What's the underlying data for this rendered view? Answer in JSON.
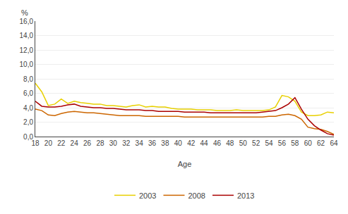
{
  "chart_data": {
    "type": "line",
    "x_label": "Age",
    "y_label": "%",
    "x": [
      18,
      19,
      20,
      21,
      22,
      23,
      24,
      25,
      26,
      27,
      28,
      29,
      30,
      31,
      32,
      33,
      34,
      35,
      36,
      37,
      38,
      39,
      40,
      41,
      42,
      43,
      44,
      45,
      46,
      47,
      48,
      49,
      50,
      51,
      52,
      53,
      54,
      55,
      56,
      57,
      58,
      59,
      60,
      61,
      62,
      63,
      64
    ],
    "series": [
      {
        "name": "2003",
        "color": "#E8D000",
        "values": [
          7.4,
          6.2,
          4.3,
          4.5,
          5.2,
          4.6,
          4.9,
          4.7,
          4.6,
          4.5,
          4.5,
          4.3,
          4.3,
          4.2,
          4.1,
          4.3,
          4.4,
          4.1,
          4.2,
          4.1,
          4.1,
          3.9,
          3.8,
          3.8,
          3.8,
          3.7,
          3.7,
          3.7,
          3.6,
          3.6,
          3.6,
          3.7,
          3.6,
          3.6,
          3.6,
          3.6,
          3.7,
          4.1,
          5.7,
          5.5,
          4.9,
          3.4,
          2.9,
          2.9,
          3.0,
          3.4,
          3.3
        ]
      },
      {
        "name": "2008",
        "color": "#CC6600",
        "values": [
          3.8,
          3.6,
          3.0,
          2.9,
          3.2,
          3.4,
          3.5,
          3.4,
          3.3,
          3.3,
          3.2,
          3.1,
          3.0,
          2.9,
          2.9,
          2.9,
          2.9,
          2.8,
          2.8,
          2.8,
          2.8,
          2.8,
          2.8,
          2.7,
          2.7,
          2.7,
          2.7,
          2.7,
          2.7,
          2.7,
          2.7,
          2.7,
          2.7,
          2.7,
          2.7,
          2.7,
          2.8,
          2.8,
          3.0,
          3.1,
          2.9,
          2.4,
          1.3,
          1.1,
          1.0,
          0.7,
          0.3
        ]
      },
      {
        "name": "2013",
        "color": "#AA0000",
        "values": [
          4.9,
          4.2,
          4.1,
          4.1,
          4.2,
          4.4,
          4.5,
          4.2,
          4.1,
          4.0,
          4.0,
          3.9,
          3.9,
          3.8,
          3.7,
          3.7,
          3.7,
          3.6,
          3.6,
          3.5,
          3.5,
          3.5,
          3.5,
          3.4,
          3.4,
          3.4,
          3.4,
          3.3,
          3.3,
          3.3,
          3.3,
          3.3,
          3.3,
          3.3,
          3.3,
          3.4,
          3.5,
          3.6,
          4.0,
          4.5,
          5.4,
          3.8,
          2.4,
          1.5,
          0.9,
          0.4,
          0.2
        ]
      }
    ],
    "xlim": [
      18,
      64
    ],
    "xticks": [
      18,
      20,
      22,
      24,
      26,
      28,
      30,
      32,
      34,
      36,
      38,
      40,
      42,
      44,
      46,
      48,
      50,
      52,
      54,
      56,
      58,
      60,
      62,
      64
    ],
    "ylim": [
      0,
      16
    ],
    "yticks": [
      {
        "value": 0.0,
        "label": "0,0"
      },
      {
        "value": 2.0,
        "label": "2,0"
      },
      {
        "value": 4.0,
        "label": "4,0"
      },
      {
        "value": 6.0,
        "label": "6,0"
      },
      {
        "value": 8.0,
        "label": "8,0"
      },
      {
        "value": 10.0,
        "label": "10,0"
      },
      {
        "value": 12.0,
        "label": "12,0"
      },
      {
        "value": 14.0,
        "label": "14,0"
      },
      {
        "value": 16.0,
        "label": "16,0"
      }
    ],
    "grid": true,
    "legend": "bottom"
  }
}
